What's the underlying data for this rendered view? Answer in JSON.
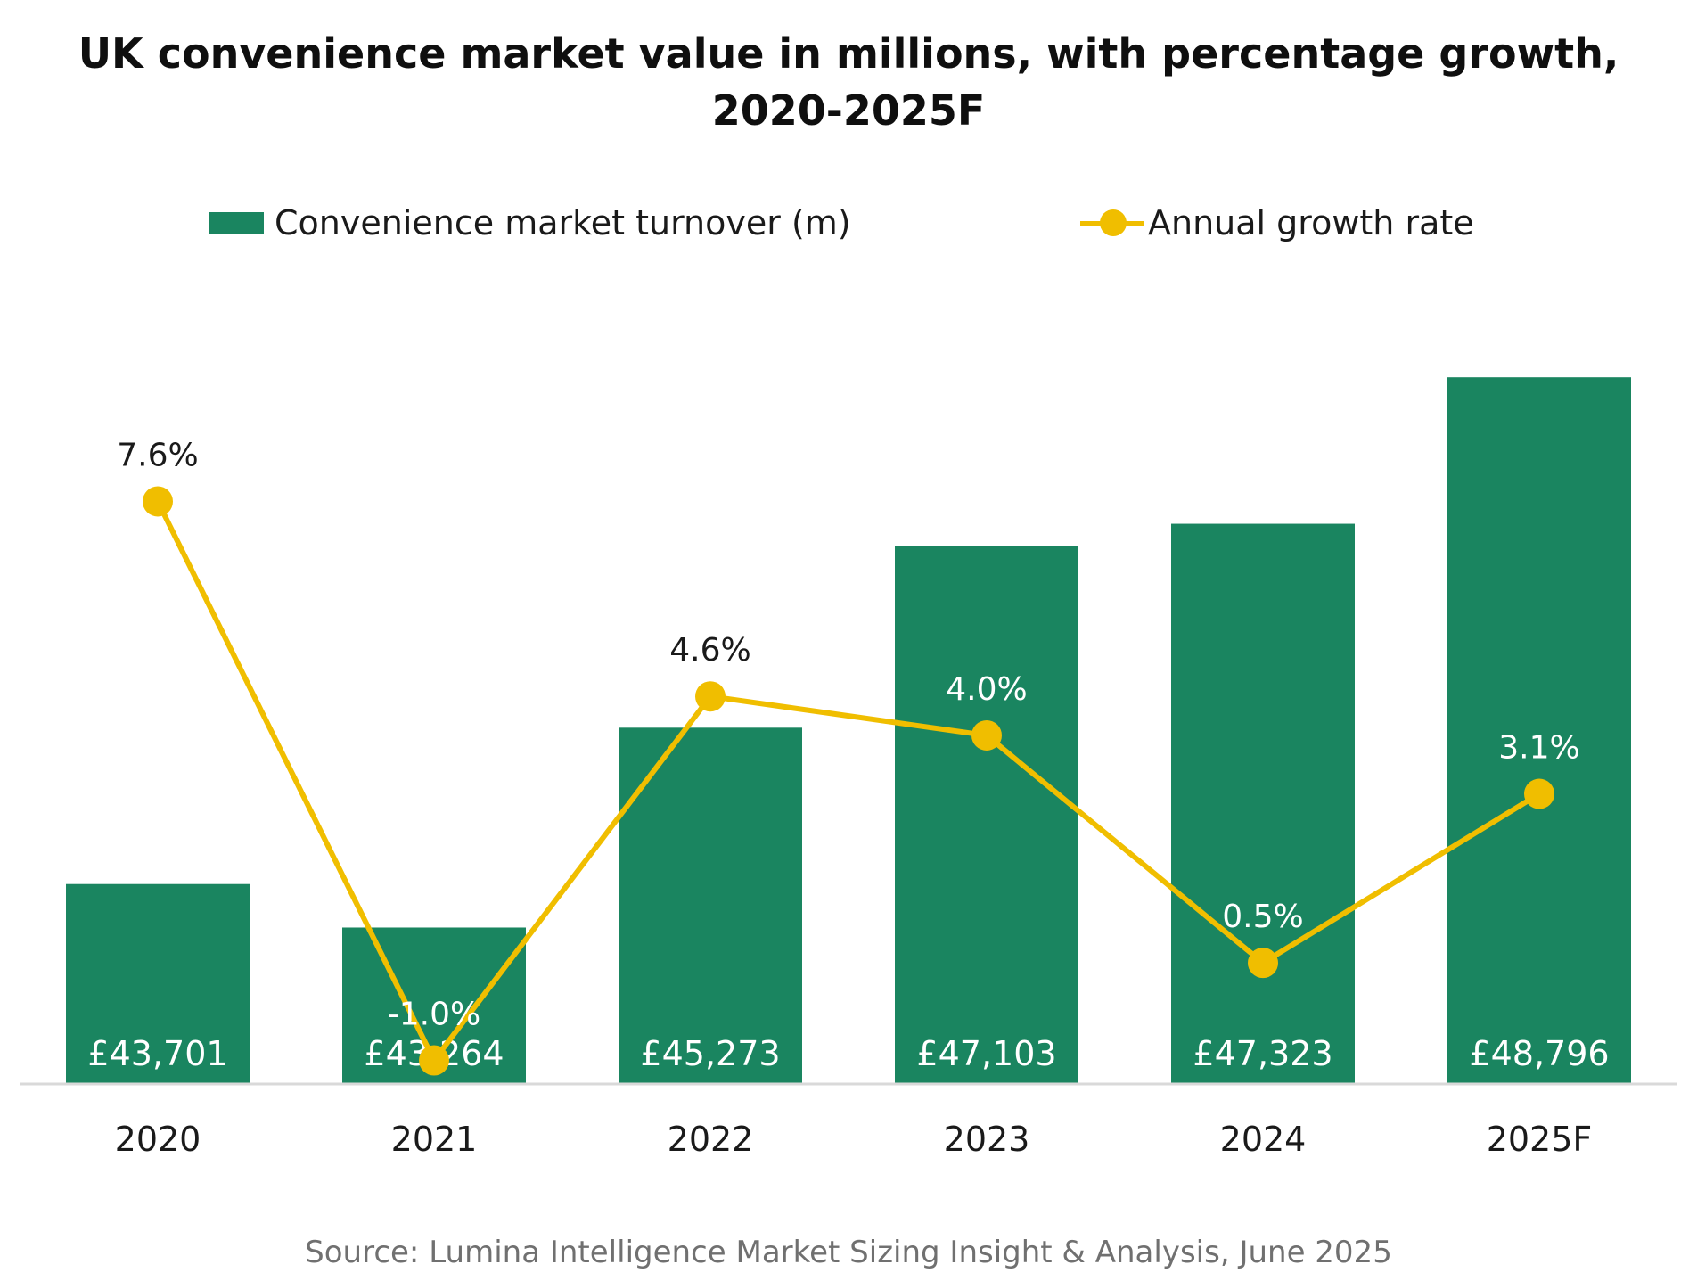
{
  "title_line1": "UK convenience market value in millions, with percentage growth,",
  "title_line2": "2020-2025F",
  "legend": {
    "bars_label": "Convenience market turnover (m)",
    "line_label": "Annual growth rate"
  },
  "colors": {
    "bar": "#1a8560",
    "line": "#f0be00",
    "bar_label": "#ffffff",
    "axis": "#d9d9d9"
  },
  "source": "Source: Lumina Intelligence Market Sizing Insight & Analysis,  June 2025",
  "chart_data": {
    "type": "bar",
    "categories": [
      "2020",
      "2021",
      "2022",
      "2023",
      "2024",
      "2025F"
    ],
    "series": [
      {
        "name": "Convenience market turnover (m)",
        "type": "bar",
        "values": [
          43701,
          43264,
          45273,
          47103,
          47323,
          48796
        ],
        "labels": [
          "£43,701",
          "£43,264",
          "£45,273",
          "£47,103",
          "£47,323",
          "£48,796"
        ]
      },
      {
        "name": "Annual growth rate",
        "type": "line",
        "values": [
          7.6,
          -1.0,
          4.6,
          4.0,
          0.5,
          3.1
        ],
        "labels": [
          "7.6%",
          "-1.0%",
          "4.6%",
          "4.0%",
          "0.5%",
          "3.1%"
        ]
      }
    ],
    "bar_axis_range": [
      41700,
      49900
    ],
    "line_axis_range": [
      -1.35,
      11.2
    ],
    "gridlines": false,
    "legend_position": "top"
  }
}
